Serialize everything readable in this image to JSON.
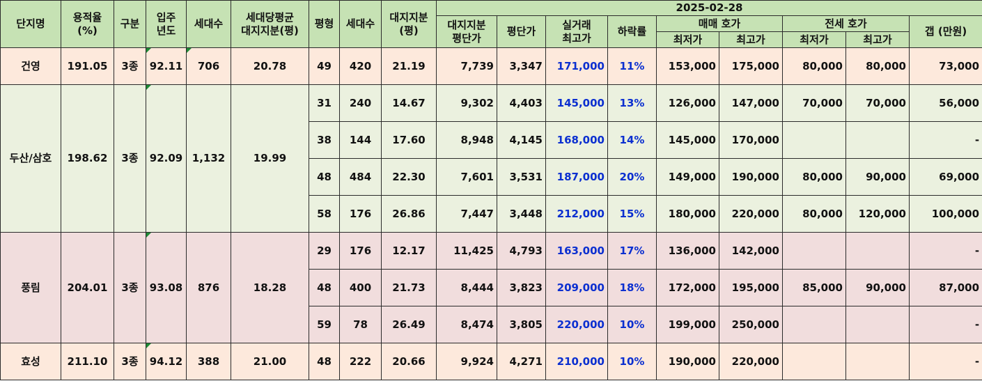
{
  "header": {
    "complex_name": "단지명",
    "far": "용적율",
    "far_unit": "(%)",
    "zone": "구분",
    "move_in": "입주",
    "move_in2": "년도",
    "households": "세대수",
    "avg_land_share": "세대당평균",
    "avg_land_share2": "대지지분(평)",
    "pyeong": "평형",
    "unit_households": "세대수",
    "land_share": "대지지분",
    "land_share_unit": "(평)",
    "date": "2025-02-28",
    "land_price": "대지지분",
    "land_price2": "평단가",
    "pyeong_price": "평단가",
    "real_trade": "실거래",
    "real_trade2": "최고가",
    "decline": "하락률",
    "sale_ask": "매매 호가",
    "jeonse_ask": "전세 호가",
    "min": "최저가",
    "max": "최고가",
    "gap": "갭 (만원)"
  },
  "complexes": [
    {
      "name": "건영",
      "far": "191.05",
      "zone": "3종",
      "year": "92.11",
      "households": "706",
      "avg_share": "20.78",
      "units": [
        {
          "pyeong": "49",
          "households": "420",
          "share": "21.19",
          "land_price": "7,739",
          "price": "3,347",
          "high": "171,000",
          "decline": "11%",
          "sale_min": "153,000",
          "sale_max": "175,000",
          "jeonse_min": "80,000",
          "jeonse_max": "80,000",
          "gap": "73,000"
        }
      ]
    },
    {
      "name": "두산/삼호",
      "far": "198.62",
      "zone": "3종",
      "year": "92.09",
      "households": "1,132",
      "avg_share": "19.99",
      "units": [
        {
          "pyeong": "31",
          "households": "240",
          "share": "14.67",
          "land_price": "9,302",
          "price": "4,403",
          "high": "145,000",
          "decline": "13%",
          "sale_min": "126,000",
          "sale_max": "147,000",
          "jeonse_min": "70,000",
          "jeonse_max": "70,000",
          "gap": "56,000"
        },
        {
          "pyeong": "38",
          "households": "144",
          "share": "17.60",
          "land_price": "8,948",
          "price": "4,145",
          "high": "168,000",
          "decline": "14%",
          "sale_min": "145,000",
          "sale_max": "170,000",
          "jeonse_min": "",
          "jeonse_max": "",
          "gap": "-"
        },
        {
          "pyeong": "48",
          "households": "484",
          "share": "22.30",
          "land_price": "7,601",
          "price": "3,531",
          "high": "187,000",
          "decline": "20%",
          "sale_min": "149,000",
          "sale_max": "190,000",
          "jeonse_min": "80,000",
          "jeonse_max": "90,000",
          "gap": "69,000"
        },
        {
          "pyeong": "58",
          "households": "176",
          "share": "26.86",
          "land_price": "7,447",
          "price": "3,448",
          "high": "212,000",
          "decline": "15%",
          "sale_min": "180,000",
          "sale_max": "220,000",
          "jeonse_min": "80,000",
          "jeonse_max": "120,000",
          "gap": "100,000"
        }
      ]
    },
    {
      "name": "풍림",
      "far": "204.01",
      "zone": "3종",
      "year": "93.08",
      "households": "876",
      "avg_share": "18.28",
      "units": [
        {
          "pyeong": "29",
          "households": "176",
          "share": "12.17",
          "land_price": "11,425",
          "price": "4,793",
          "high": "163,000",
          "decline": "17%",
          "sale_min": "136,000",
          "sale_max": "142,000",
          "jeonse_min": "",
          "jeonse_max": "",
          "gap": "-"
        },
        {
          "pyeong": "48",
          "households": "400",
          "share": "21.73",
          "land_price": "8,444",
          "price": "3,823",
          "high": "209,000",
          "decline": "18%",
          "sale_min": "172,000",
          "sale_max": "195,000",
          "jeonse_min": "85,000",
          "jeonse_max": "90,000",
          "gap": "87,000"
        },
        {
          "pyeong": "59",
          "households": "78",
          "share": "26.49",
          "land_price": "8,474",
          "price": "3,805",
          "high": "220,000",
          "decline": "10%",
          "sale_min": "199,000",
          "sale_max": "250,000",
          "jeonse_min": "",
          "jeonse_max": "",
          "gap": "-"
        }
      ]
    },
    {
      "name": "효성",
      "far": "211.10",
      "zone": "3종",
      "year": "94.12",
      "households": "388",
      "avg_share": "21.00",
      "units": [
        {
          "pyeong": "48",
          "households": "222",
          "share": "20.66",
          "land_price": "9,924",
          "price": "4,271",
          "high": "210,000",
          "decline": "10%",
          "sale_min": "190,000",
          "sale_max": "220,000",
          "jeonse_min": "",
          "jeonse_max": "",
          "gap": "-"
        }
      ]
    }
  ]
}
